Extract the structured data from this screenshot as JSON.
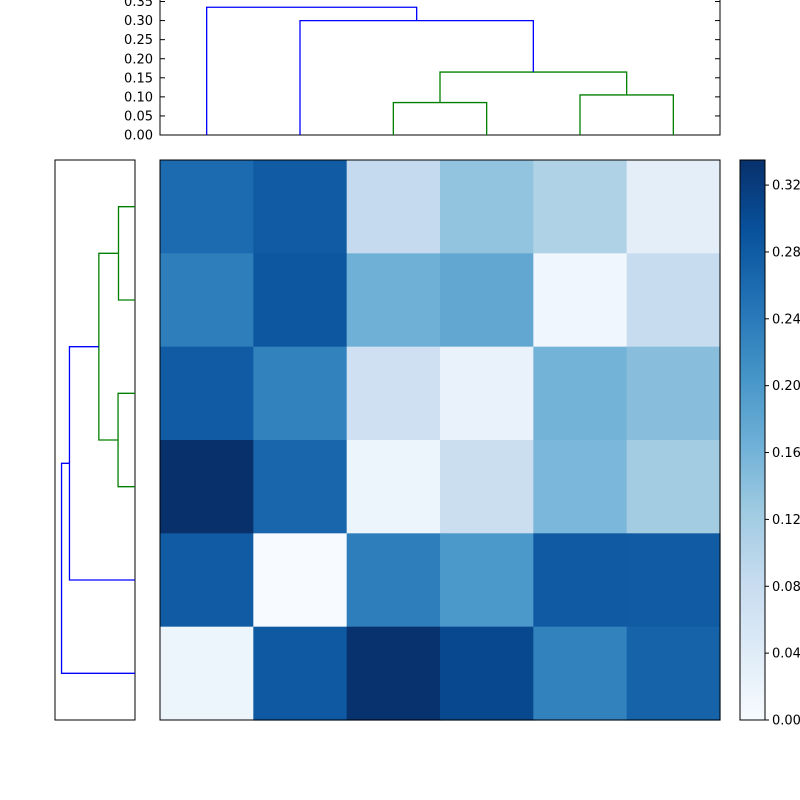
{
  "figure": {
    "background": "#ffffff",
    "title": ""
  },
  "chart_data": {
    "type": "heatmap",
    "variant": "clustermap-with-dendrograms",
    "title": "",
    "xlabel": "",
    "ylabel": "",
    "colormap": "Blues",
    "colormap_stops": [
      [
        0.0,
        "#f7fbff"
      ],
      [
        0.125,
        "#deebf7"
      ],
      [
        0.25,
        "#c6dbef"
      ],
      [
        0.375,
        "#9ecae1"
      ],
      [
        0.5,
        "#6baed6"
      ],
      [
        0.625,
        "#4292c6"
      ],
      [
        0.75,
        "#2171b5"
      ],
      [
        0.875,
        "#08519c"
      ],
      [
        1.0,
        "#08306b"
      ]
    ],
    "vmin": 0.0,
    "vmax": 0.335,
    "rows": 6,
    "cols": 6,
    "matrix": [
      [
        0.26,
        0.28,
        0.085,
        0.135,
        0.107,
        0.034
      ],
      [
        0.235,
        0.285,
        0.164,
        0.178,
        0.013,
        0.08
      ],
      [
        0.28,
        0.23,
        0.07,
        0.023,
        0.16,
        0.144
      ],
      [
        0.335,
        0.265,
        0.018,
        0.077,
        0.154,
        0.12
      ],
      [
        0.28,
        0.0,
        0.235,
        0.2,
        0.282,
        0.28
      ],
      [
        0.017,
        0.283,
        0.333,
        0.305,
        0.23,
        0.27
      ]
    ],
    "colorbar": {
      "orientation": "vertical",
      "ticks": [
        {
          "value": 0.0,
          "label": "0.00"
        },
        {
          "value": 0.04,
          "label": "0.04"
        },
        {
          "value": 0.08,
          "label": "0.08"
        },
        {
          "value": 0.12,
          "label": "0.12"
        },
        {
          "value": 0.16,
          "label": "0.16"
        },
        {
          "value": 0.2,
          "label": "0.20"
        },
        {
          "value": 0.24,
          "label": "0.24"
        },
        {
          "value": 0.28,
          "label": "0.28"
        },
        {
          "value": 0.32,
          "label": "0.32"
        }
      ]
    },
    "top_dendrogram": {
      "axis_max": 0.354,
      "n_leaves": 6,
      "axis_ticks": [
        {
          "value": 0.0,
          "label": "0.00"
        },
        {
          "value": 0.05,
          "label": "0.05"
        },
        {
          "value": 0.1,
          "label": "0.10"
        },
        {
          "value": 0.15,
          "label": "0.15"
        },
        {
          "value": 0.2,
          "label": "0.20"
        },
        {
          "value": 0.25,
          "label": "0.25"
        },
        {
          "value": 0.3,
          "label": "0.30"
        },
        {
          "value": 0.35,
          "label": "0.35"
        }
      ],
      "links": [
        {
          "x1": 2.5,
          "x2": 3.5,
          "h1": 0.0,
          "h2": 0.0,
          "h": 0.085,
          "color": "green"
        },
        {
          "x1": 4.5,
          "x2": 5.5,
          "h1": 0.0,
          "h2": 0.0,
          "h": 0.105,
          "color": "green"
        },
        {
          "x1": 3.0,
          "x2": 5.0,
          "h1": 0.085,
          "h2": 0.105,
          "h": 0.165,
          "color": "green"
        },
        {
          "x1": 1.5,
          "x2": 4.0,
          "h1": 0.0,
          "h2": 0.165,
          "h": 0.3,
          "color": "blue"
        },
        {
          "x1": 0.5,
          "x2": 2.75,
          "h1": 0.0,
          "h2": 0.3,
          "h": 0.335,
          "color": "blue"
        }
      ]
    },
    "left_dendrogram": {
      "axis_max": 0.354,
      "n_leaves": 6,
      "links": [
        {
          "x1": 0.5,
          "x2": 1.5,
          "h1": 0.0,
          "h2": 0.0,
          "h": 0.073,
          "color": "green"
        },
        {
          "x1": 2.5,
          "x2": 3.5,
          "h1": 0.0,
          "h2": 0.0,
          "h": 0.075,
          "color": "green"
        },
        {
          "x1": 1.0,
          "x2": 3.0,
          "h1": 0.073,
          "h2": 0.075,
          "h": 0.16,
          "color": "green"
        },
        {
          "x1": 2.0,
          "x2": 4.5,
          "h1": 0.16,
          "h2": 0.0,
          "h": 0.29,
          "color": "blue"
        },
        {
          "x1": 3.25,
          "x2": 5.5,
          "h1": 0.29,
          "h2": 0.0,
          "h": 0.325,
          "color": "blue"
        }
      ]
    },
    "link_colors": {
      "blue": "#0000ff",
      "green": "#008000"
    },
    "axis_color": "#000000",
    "tick_font_size": 13,
    "background": "#ffffff"
  }
}
